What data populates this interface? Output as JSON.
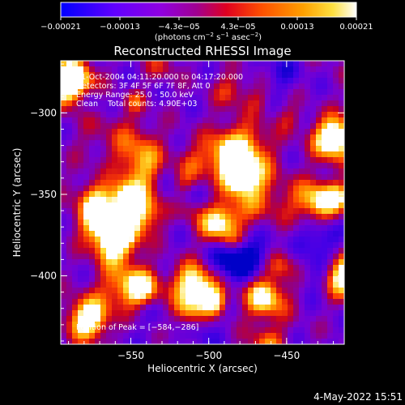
{
  "chart_data": {
    "type": "heatmap",
    "title": "Reconstructed RHESSI Image",
    "xlabel": "Heliocentric X (arcsec)",
    "ylabel": "Heliocentric Y (arcsec)",
    "xlim": [
      -595,
      -413
    ],
    "ylim": [
      -442,
      -268
    ],
    "x_ticks": [
      {
        "value": -550,
        "label": "−550"
      },
      {
        "value": -500,
        "label": "−500"
      },
      {
        "value": -450,
        "label": "−450"
      }
    ],
    "y_ticks": [
      {
        "value": -300,
        "label": "−300"
      },
      {
        "value": -350,
        "label": "−350"
      },
      {
        "value": -400,
        "label": "−400"
      }
    ],
    "colorbar": {
      "min": -0.00021,
      "max": 0.00021,
      "tick_labels": [
        "−0.00021",
        "−0.00013",
        "−4.3e−05",
        "4.3e−05",
        "0.00013",
        "0.00021"
      ],
      "unit_parts": {
        "pre": "(photons cm",
        "e1": "−2",
        "mid": " s",
        "e2": "−1",
        "post": " asec",
        "e3": "−2",
        "end": ")"
      },
      "colormap": [
        "#0000ff",
        "#8000ff",
        "#c000a0",
        "#ff3000",
        "#ff8000",
        "#ffd000",
        "#ffffff"
      ]
    },
    "annotations": [
      "31-Oct-2004 04:11:20.000 to 04:17:20.000",
      "Detectors: 3F 4F 5F 6F 7F 8F, Att 0",
      "Energy Range: 25.0 - 50.0 keV",
      "Clean    Total counts: 4.90E+03"
    ],
    "peak_label": "Position of Peak = [−584,−286]",
    "peak": {
      "x": -584,
      "y": -286
    },
    "bright_sources": [
      {
        "x": -591,
        "y": -279,
        "level": 1.0
      },
      {
        "x": -421,
        "y": -314,
        "level": 0.85
      },
      {
        "x": -416,
        "y": -398,
        "level": 0.8
      },
      {
        "x": -579,
        "y": -425,
        "level": 0.75
      },
      {
        "x": -511,
        "y": -403,
        "level": 0.7
      },
      {
        "x": -495,
        "y": -366,
        "level": 0.7
      },
      {
        "x": -562,
        "y": -378,
        "level": 0.65
      },
      {
        "x": -430,
        "y": -353,
        "level": 0.6
      }
    ]
  },
  "footer_timestamp": "4-May-2022 15:51"
}
